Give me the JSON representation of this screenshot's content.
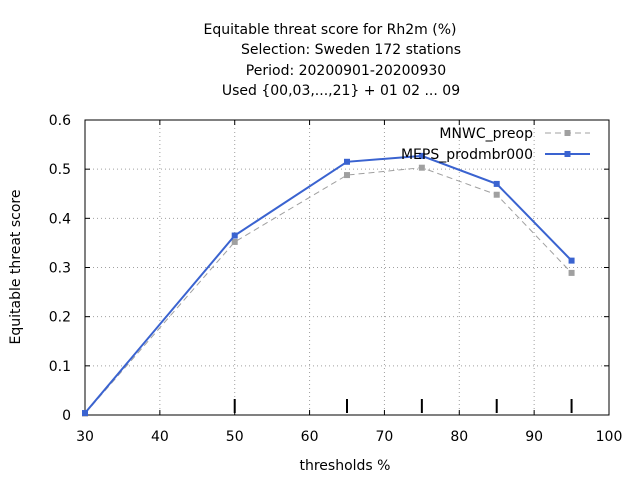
{
  "chart_data": {
    "type": "line",
    "title_lines": [
      "Equitable threat score  for Rh2m (%)",
      "Selection: Sweden    172 stations",
      "Period: 20200901-20200930",
      "Used {00,03,...,21} + 01 02 ... 09"
    ],
    "xlabel": "thresholds %",
    "ylabel": "Equitable threat score",
    "xlim": [
      30,
      100
    ],
    "ylim": [
      0,
      0.6
    ],
    "xticks": [
      "30",
      "40",
      "50",
      "60",
      "70",
      "80",
      "90",
      "100"
    ],
    "yticks": [
      "0",
      "0.1",
      "0.2",
      "0.3",
      "0.4",
      "0.5",
      "0.6"
    ],
    "grid": true,
    "legend_position": "top-right",
    "threshold_marks": [
      50,
      65,
      75,
      85,
      95
    ],
    "series": [
      {
        "name": "MNWC_preop",
        "color": "#a0a0a0",
        "style": "dashed",
        "x": [
          30,
          50,
          65,
          75,
          85,
          95
        ],
        "y": [
          0.003,
          0.352,
          0.488,
          0.503,
          0.448,
          0.289
        ]
      },
      {
        "name": "MEPS_prodmbr000",
        "color": "#3a63d0",
        "style": "solid",
        "x": [
          30,
          50,
          65,
          75,
          85,
          95
        ],
        "y": [
          0.004,
          0.365,
          0.515,
          0.527,
          0.47,
          0.314
        ]
      }
    ]
  }
}
